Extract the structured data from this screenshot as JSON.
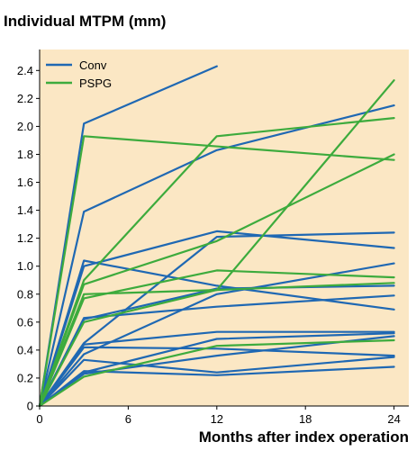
{
  "chart_data": {
    "type": "line",
    "title": "Individual MTPM (mm)",
    "xlabel": "Months after index operation",
    "ylabel": "",
    "xlim": [
      0,
      25
    ],
    "ylim": [
      0,
      2.55
    ],
    "x_ticks": [
      "0",
      "6",
      "12",
      "18",
      "24"
    ],
    "y_ticks": [
      "0",
      "0.2",
      "0.4",
      "0.6",
      "0.8",
      "1.0",
      "1.2",
      "1.4",
      "1.6",
      "1.8",
      "2.0",
      "2.2",
      "2.4"
    ],
    "x_tick_values": [
      0,
      6,
      12,
      18,
      24
    ],
    "y_tick_values": [
      0,
      0.2,
      0.4,
      0.6,
      0.8,
      1.0,
      1.2,
      1.4,
      1.6,
      1.8,
      2.0,
      2.2,
      2.4
    ],
    "grid": false,
    "legend_position": "top-left",
    "background_color": "#fbe7c4",
    "groups": [
      {
        "name": "Conv",
        "color": "#1f68b3",
        "lines": [
          [
            [
              0,
              0
            ],
            [
              3,
              2.02
            ],
            [
              12,
              2.43
            ]
          ],
          [
            [
              0,
              0
            ],
            [
              3,
              1.39
            ],
            [
              12,
              1.83
            ],
            [
              24,
              2.15
            ]
          ],
          [
            [
              0,
              0
            ],
            [
              3,
              1.04
            ],
            [
              12,
              0.86
            ],
            [
              24,
              0.69
            ]
          ],
          [
            [
              0,
              0
            ],
            [
              3,
              1.0
            ],
            [
              12,
              1.25
            ],
            [
              24,
              1.13
            ]
          ],
          [
            [
              0,
              0
            ],
            [
              3,
              0.63
            ],
            [
              12,
              0.71
            ],
            [
              24,
              0.79
            ]
          ],
          [
            [
              0,
              0
            ],
            [
              3,
              0.45
            ],
            [
              12,
              1.21
            ],
            [
              24,
              1.24
            ]
          ],
          [
            [
              0,
              0
            ],
            [
              3,
              0.44
            ],
            [
              12,
              0.53
            ],
            [
              24,
              0.53
            ]
          ],
          [
            [
              0,
              0
            ],
            [
              3,
              0.42
            ],
            [
              12,
              0.41
            ],
            [
              24,
              0.36
            ]
          ],
          [
            [
              0,
              0
            ],
            [
              3,
              0.37
            ],
            [
              12,
              0.8
            ],
            [
              24,
              1.02
            ]
          ],
          [
            [
              0,
              0
            ],
            [
              3,
              0.33
            ],
            [
              12,
              0.24
            ],
            [
              24,
              0.35
            ]
          ],
          [
            [
              0,
              0
            ],
            [
              3,
              0.25
            ],
            [
              12,
              0.22
            ],
            [
              24,
              0.28
            ]
          ],
          [
            [
              0,
              0
            ],
            [
              3,
              0.24
            ],
            [
              12,
              0.48
            ],
            [
              24,
              0.52
            ]
          ],
          [
            [
              0,
              0
            ],
            [
              3,
              0.23
            ],
            [
              12,
              0.36
            ],
            [
              24,
              0.5
            ]
          ],
          [
            [
              0,
              0
            ],
            [
              3,
              0.62
            ],
            [
              12,
              0.84
            ],
            [
              24,
              0.86
            ]
          ]
        ]
      },
      {
        "name": "PSPG",
        "color": "#3dab3d",
        "lines": [
          [
            [
              0,
              0
            ],
            [
              3,
              1.93
            ],
            [
              24,
              1.76
            ]
          ],
          [
            [
              0,
              0
            ],
            [
              3,
              0.9
            ],
            [
              12,
              1.93
            ],
            [
              24,
              2.06
            ]
          ],
          [
            [
              0,
              0
            ],
            [
              3,
              0.8
            ],
            [
              12,
              0.83
            ],
            [
              24,
              2.33
            ]
          ],
          [
            [
              0,
              0
            ],
            [
              3,
              0.87
            ],
            [
              12,
              1.18
            ],
            [
              24,
              1.8
            ]
          ],
          [
            [
              0,
              0
            ],
            [
              3,
              0.77
            ],
            [
              12,
              0.97
            ],
            [
              24,
              0.92
            ]
          ],
          [
            [
              0,
              0
            ],
            [
              3,
              0.6
            ],
            [
              12,
              0.83
            ],
            [
              24,
              0.88
            ]
          ],
          [
            [
              0,
              0
            ],
            [
              3,
              0.21
            ],
            [
              12,
              0.43
            ],
            [
              24,
              0.47
            ]
          ]
        ]
      }
    ]
  }
}
